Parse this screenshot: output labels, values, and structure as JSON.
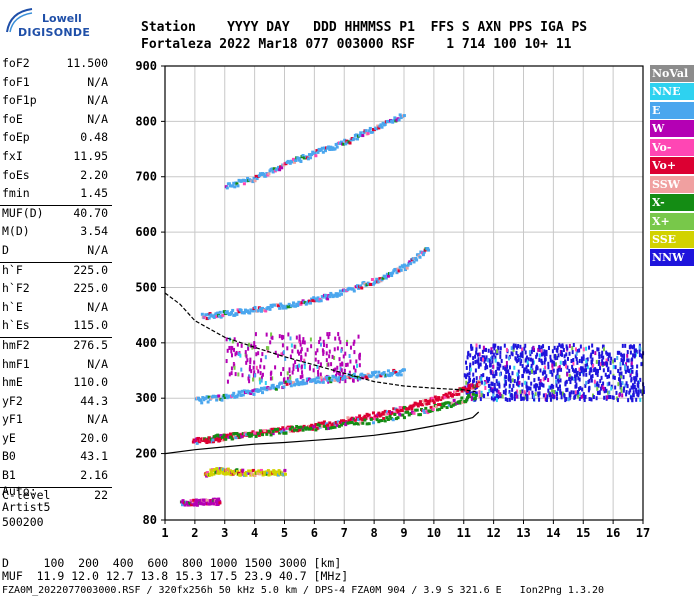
{
  "logo": {
    "line1": "Lowell",
    "line2": "DIGISONDE"
  },
  "header": {
    "line1": "Station    YYYY DAY   DDD HHMMSS P1  FFS S AXN PPS IGA PS",
    "line2": "Fortaleza 2022 Mar18 077 003000 RSF    1 714 100 10+ 11"
  },
  "parameters": [
    {
      "k": "foF2",
      "v": "11.500",
      "sep": false
    },
    {
      "k": "foF1",
      "v": "N/A",
      "sep": false
    },
    {
      "k": "foF1p",
      "v": "N/A",
      "sep": false
    },
    {
      "k": "foE",
      "v": "N/A",
      "sep": false
    },
    {
      "k": "foEp",
      "v": "0.48",
      "sep": false
    },
    {
      "k": "fxI",
      "v": "11.95",
      "sep": false
    },
    {
      "k": "foEs",
      "v": "2.20",
      "sep": false
    },
    {
      "k": "fmin",
      "v": "1.45",
      "sep": false
    },
    {
      "k": "MUF(D)",
      "v": "40.70",
      "sep": true
    },
    {
      "k": "M(D)",
      "v": "3.54",
      "sep": false
    },
    {
      "k": "D",
      "v": "N/A",
      "sep": false
    },
    {
      "k": "h`F",
      "v": "225.0",
      "sep": true
    },
    {
      "k": "h`F2",
      "v": "225.0",
      "sep": false
    },
    {
      "k": "h`E",
      "v": "N/A",
      "sep": false
    },
    {
      "k": "h`Es",
      "v": "115.0",
      "sep": false
    },
    {
      "k": "hmF2",
      "v": "276.5",
      "sep": true
    },
    {
      "k": "hmF1",
      "v": "N/A",
      "sep": false
    },
    {
      "k": "hmE",
      "v": "110.0",
      "sep": false
    },
    {
      "k": "yF2",
      "v": "44.3",
      "sep": false
    },
    {
      "k": "yF1",
      "v": "N/A",
      "sep": false
    },
    {
      "k": "yE",
      "v": "20.0",
      "sep": false
    },
    {
      "k": "B0",
      "v": "43.1",
      "sep": false
    },
    {
      "k": "B1",
      "v": "2.16",
      "sep": false
    },
    {
      "k": "C-level",
      "v": "22",
      "sep": true
    }
  ],
  "auto": {
    "line1": "Auto:",
    "line2": "Artist5",
    "line3": "500200"
  },
  "legend": [
    {
      "label": "NoVal",
      "color": "#8c8c8c"
    },
    {
      "label": "NNE",
      "color": "#2ed2f0"
    },
    {
      "label": "E",
      "color": "#4aa6ee"
    },
    {
      "label": "W",
      "color": "#b400b4"
    },
    {
      "label": "Vo-",
      "color": "#ff46b4"
    },
    {
      "label": "Vo+",
      "color": "#dc0032"
    },
    {
      "label": "SSW",
      "color": "#f0a0a0"
    },
    {
      "label": "X-",
      "color": "#148c14"
    },
    {
      "label": "X+",
      "color": "#78c84a"
    },
    {
      "label": "SSE",
      "color": "#d2d200"
    },
    {
      "label": "NNW",
      "color": "#1e14dc"
    }
  ],
  "footer": {
    "line1": "D     100  200  400  600  800 1000 1500 3000 [km]",
    "line2": "MUF  11.9 12.0 12.7 13.8 15.3 17.5 23.9 40.7 [MHz]",
    "line3": "FZA0M_2022077003000.RSF / 320fx256h 50 kHz 5.0 km / DPS-4 FZA0M 904 / 3.9 S 321.6 E   Ion2Png 1.3.20"
  },
  "chart_data": {
    "type": "scatter",
    "xlim": [
      1,
      17
    ],
    "ylim": [
      80,
      900
    ],
    "x_ticks": [
      1,
      2,
      3,
      4,
      5,
      6,
      7,
      8,
      9,
      10,
      11,
      12,
      13,
      14,
      15,
      16,
      17
    ],
    "y_ticks": [
      80,
      200,
      300,
      400,
      500,
      600,
      700,
      800,
      900
    ],
    "grid": true,
    "traces": [
      {
        "name": "F2 O-trace",
        "color": "Vo+",
        "points": [
          [
            1.9,
            225
          ],
          [
            2.5,
            228
          ],
          [
            3,
            232
          ],
          [
            4,
            240
          ],
          [
            5,
            245
          ],
          [
            6,
            252
          ],
          [
            7,
            262
          ],
          [
            8,
            272
          ],
          [
            9,
            285
          ],
          [
            10,
            300
          ],
          [
            11,
            318
          ],
          [
            11.5,
            330
          ]
        ]
      },
      {
        "name": "F2 X-trace",
        "color": "X-",
        "points": [
          [
            2.5,
            230
          ],
          [
            4,
            238
          ],
          [
            6,
            250
          ],
          [
            8,
            262
          ],
          [
            9.5,
            278
          ],
          [
            10.5,
            292
          ],
          [
            11.4,
            308
          ]
        ]
      },
      {
        "name": "Es",
        "color": "SSE",
        "points": [
          [
            2.3,
            165
          ],
          [
            2.7,
            172
          ],
          [
            3,
            170
          ],
          [
            3.5,
            168
          ],
          [
            4,
            168
          ],
          [
            4.5,
            168
          ],
          [
            5,
            168
          ]
        ]
      },
      {
        "name": "E low",
        "color": "W",
        "points": [
          [
            1.5,
            113
          ],
          [
            2,
            114
          ],
          [
            2.5,
            115
          ],
          [
            2.8,
            116
          ]
        ]
      },
      {
        "name": "second hop",
        "color": "E",
        "points": [
          [
            2.2,
            450
          ],
          [
            3,
            455
          ],
          [
            4,
            462
          ],
          [
            5,
            470
          ],
          [
            6,
            480
          ],
          [
            7,
            495
          ],
          [
            8,
            515
          ],
          [
            9,
            540
          ],
          [
            9.8,
            575
          ]
        ]
      },
      {
        "name": "third hop",
        "color": "E",
        "points": [
          [
            3,
            685
          ],
          [
            4,
            700
          ],
          [
            5,
            725
          ],
          [
            6,
            745
          ],
          [
            7,
            765
          ],
          [
            8,
            790
          ],
          [
            9,
            815
          ]
        ]
      },
      {
        "name": "F2 high trace",
        "color": "E",
        "points": [
          [
            2,
            298
          ],
          [
            3,
            305
          ],
          [
            4,
            315
          ],
          [
            5,
            328
          ],
          [
            6,
            335
          ],
          [
            7,
            340
          ],
          [
            8,
            345
          ],
          [
            9,
            350
          ]
        ]
      }
    ],
    "spread_blocks": [
      {
        "color": "NNW",
        "x": [
          11,
          17
        ],
        "y": [
          300,
          400
        ]
      },
      {
        "color": "W",
        "x": [
          3,
          7.5
        ],
        "y": [
          330,
          420
        ]
      }
    ],
    "profile_lines": [
      {
        "name": "upper profile",
        "points": [
          [
            1,
            490
          ],
          [
            1.5,
            470
          ],
          [
            2,
            440
          ],
          [
            3,
            410
          ],
          [
            4,
            392
          ],
          [
            5,
            375
          ],
          [
            6,
            360
          ],
          [
            7,
            345
          ],
          [
            8,
            330
          ],
          [
            9,
            322
          ],
          [
            10,
            318
          ],
          [
            11,
            315
          ],
          [
            11.4,
            312
          ]
        ]
      },
      {
        "name": "lower profile",
        "points": [
          [
            1,
            200
          ],
          [
            2,
            207
          ],
          [
            3,
            212
          ],
          [
            4,
            217
          ],
          [
            5,
            220
          ],
          [
            6,
            224
          ],
          [
            7,
            228
          ],
          [
            8,
            233
          ],
          [
            9,
            240
          ],
          [
            10,
            250
          ],
          [
            10.8,
            258
          ],
          [
            11.3,
            265
          ],
          [
            11.5,
            275
          ]
        ]
      }
    ]
  }
}
